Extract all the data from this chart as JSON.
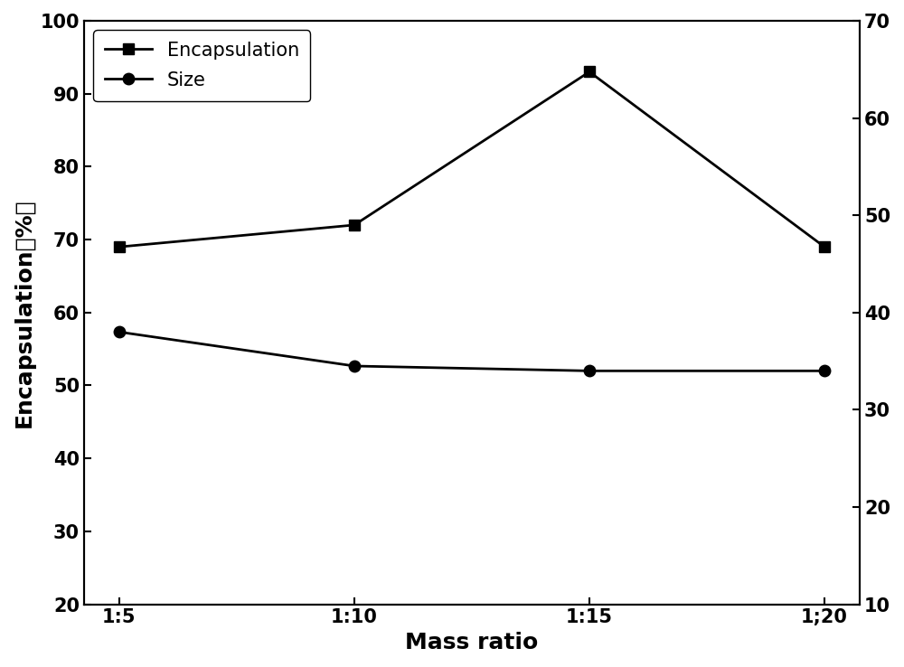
{
  "x_labels": [
    "1:5",
    "1:10",
    "1:15",
    "1;20"
  ],
  "x_positions": [
    0,
    1,
    2,
    3
  ],
  "encapsulation_values": [
    69.0,
    72.0,
    93.0,
    69.0
  ],
  "size_values": [
    38.0,
    34.5,
    34.0,
    34.0
  ],
  "left_ylabel": "Encapsulation（%）",
  "xlabel": "Mass ratio",
  "left_ylim": [
    20,
    100
  ],
  "right_ylim": [
    10,
    70
  ],
  "left_yticks": [
    20,
    30,
    40,
    50,
    60,
    70,
    80,
    90,
    100
  ],
  "right_yticks": [
    10,
    20,
    30,
    40,
    50,
    60,
    70
  ],
  "legend_encapsulation": "Encapsulation",
  "legend_size": "Size",
  "line_color": "#000000",
  "marker_square": "s",
  "marker_circle": "o",
  "marker_size": 9,
  "linewidth": 2.0,
  "fontsize_label": 18,
  "fontsize_tick": 15,
  "fontsize_legend": 15,
  "background_color": "#ffffff"
}
